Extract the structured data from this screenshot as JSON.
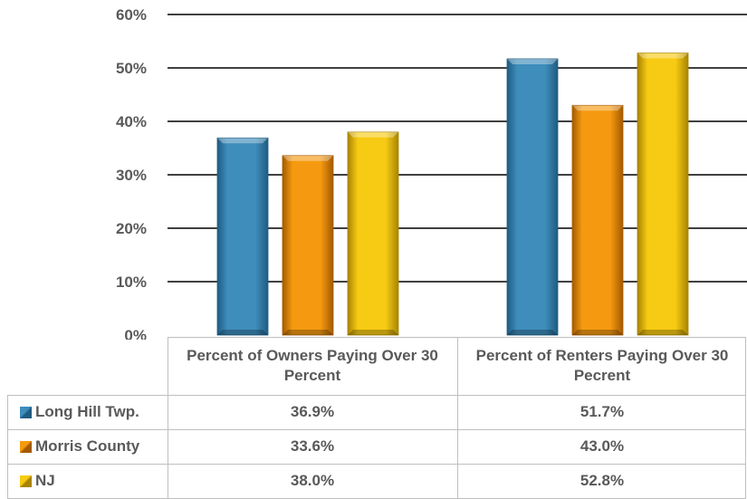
{
  "chart_data": {
    "type": "bar",
    "categories": [
      "Percent of Owners Paying Over 30 Percent",
      "Percent of Renters Paying Over 30 Pecrent"
    ],
    "series": [
      {
        "name": "Long Hill Twp.",
        "values": [
          36.9,
          51.7
        ],
        "labels": [
          "36.9%",
          "51.7%"
        ],
        "color": "#3E8DBB",
        "dark": "#1F5C82"
      },
      {
        "name": "Morris County",
        "values": [
          33.6,
          43.0
        ],
        "labels": [
          "33.6%",
          "43.0%"
        ],
        "color": "#F59A10",
        "dark": "#A55A00"
      },
      {
        "name": "NJ",
        "values": [
          38.0,
          52.8
        ],
        "labels": [
          "38.0%",
          "52.8%"
        ],
        "color": "#F7CB13",
        "dark": "#A88400"
      }
    ],
    "yticks": [
      "0%",
      "10%",
      "20%",
      "30%",
      "40%",
      "50%",
      "60%"
    ],
    "ylim": [
      0,
      60
    ],
    "grid": true,
    "legend": "data-table"
  }
}
